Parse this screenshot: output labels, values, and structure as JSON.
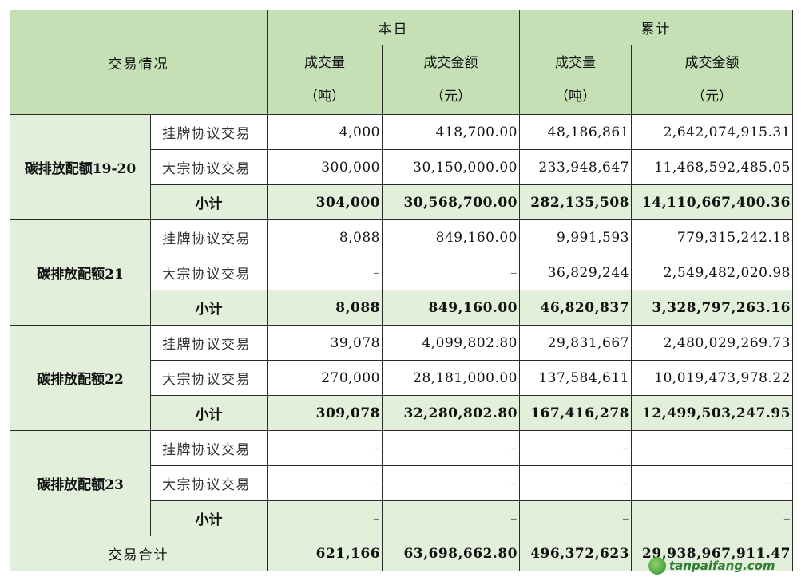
{
  "header": {
    "corner": "交易情况",
    "today": "本日",
    "cumulative": "累计",
    "volume": "成交量",
    "volume_unit": "（吨）",
    "amount": "成交金额",
    "amount_unit": "（元）"
  },
  "groups": [
    {
      "name": "碳排放配额19-20",
      "rows": [
        {
          "type": "挂牌协议交易",
          "d_vol": "4,000",
          "d_amt": "418,700.00",
          "c_vol": "48,186,861",
          "c_amt": "2,642,074,915.31"
        },
        {
          "type": "大宗协议交易",
          "d_vol": "300,000",
          "d_amt": "30,150,000.00",
          "c_vol": "233,948,647",
          "c_amt": "11,468,592,485.05"
        },
        {
          "type": "小计",
          "d_vol": "304,000",
          "d_amt": "30,568,700.00",
          "c_vol": "282,135,508",
          "c_amt": "14,110,667,400.36"
        }
      ]
    },
    {
      "name": "碳排放配额21",
      "rows": [
        {
          "type": "挂牌协议交易",
          "d_vol": "8,088",
          "d_amt": "849,160.00",
          "c_vol": "9,991,593",
          "c_amt": "779,315,242.18"
        },
        {
          "type": "大宗协议交易",
          "d_vol": "–",
          "d_amt": "–",
          "c_vol": "36,829,244",
          "c_amt": "2,549,482,020.98"
        },
        {
          "type": "小计",
          "d_vol": "8,088",
          "d_amt": "849,160.00",
          "c_vol": "46,820,837",
          "c_amt": "3,328,797,263.16"
        }
      ]
    },
    {
      "name": "碳排放配额22",
      "rows": [
        {
          "type": "挂牌协议交易",
          "d_vol": "39,078",
          "d_amt": "4,099,802.80",
          "c_vol": "29,831,667",
          "c_amt": "2,480,029,269.73"
        },
        {
          "type": "大宗协议交易",
          "d_vol": "270,000",
          "d_amt": "28,181,000.00",
          "c_vol": "137,584,611",
          "c_amt": "10,019,473,978.22"
        },
        {
          "type": "小计",
          "d_vol": "309,078",
          "d_amt": "32,280,802.80",
          "c_vol": "167,416,278",
          "c_amt": "12,499,503,247.95"
        }
      ]
    },
    {
      "name": "碳排放配额23",
      "rows": [
        {
          "type": "挂牌协议交易",
          "d_vol": "–",
          "d_amt": "–",
          "c_vol": "–",
          "c_amt": "–"
        },
        {
          "type": "大宗协议交易",
          "d_vol": "–",
          "d_amt": "–",
          "c_vol": "–",
          "c_amt": "–"
        },
        {
          "type": "小计",
          "d_vol": "–",
          "d_amt": "–",
          "c_vol": "–",
          "c_amt": "–"
        }
      ]
    }
  ],
  "total": {
    "label": "交易合计",
    "d_vol": "621,166",
    "d_amt": "63,698,662.80",
    "c_vol": "496,372,623",
    "c_amt": "29,938,967,911.47"
  },
  "watermark": {
    "text": "tanpaifang.com",
    "icon": "leaf-logo-icon"
  },
  "colors": {
    "header_bg": "#c5e0b4",
    "group_bg": "#e2efda",
    "border": "#2b2b2b"
  }
}
